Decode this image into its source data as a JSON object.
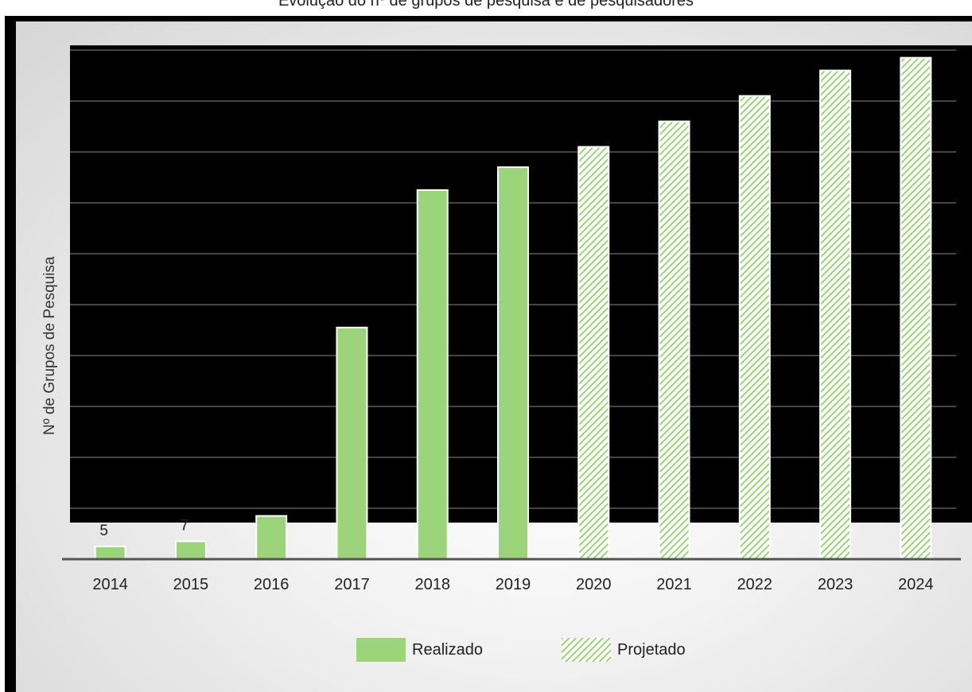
{
  "title": "Evolução do nº de grupos de pesquisa e de pesquisadores",
  "colors": {
    "bar_fill": "#9bd47a",
    "bar_stroke": "#ffffff",
    "hatch_stroke": "#8fce6c",
    "axis": "#555555",
    "gridline": "#6e6e6e"
  },
  "chart_data": {
    "type": "bar",
    "ylabel": "Nº de Grupos de Pesquisa",
    "xlabel": "",
    "categories": [
      "2014",
      "2015",
      "2016",
      "2017",
      "2018",
      "2019",
      "2020",
      "2021",
      "2022",
      "2023",
      "2024"
    ],
    "series": [
      {
        "name": "Realizado",
        "style": "solid",
        "values": [
          5,
          7,
          17,
          91,
          145,
          154,
          null,
          null,
          null,
          null,
          null
        ]
      },
      {
        "name": "Projetado",
        "style": "hatched",
        "values": [
          null,
          null,
          null,
          null,
          null,
          null,
          162,
          172,
          182,
          192,
          197
        ]
      }
    ],
    "data_labels": [
      "5",
      "7",
      "",
      "",
      "",
      "",
      "",
      "",
      "",
      "",
      ""
    ],
    "ylim": [
      0,
      200
    ],
    "grid": true,
    "legend_position": "bottom-center"
  }
}
